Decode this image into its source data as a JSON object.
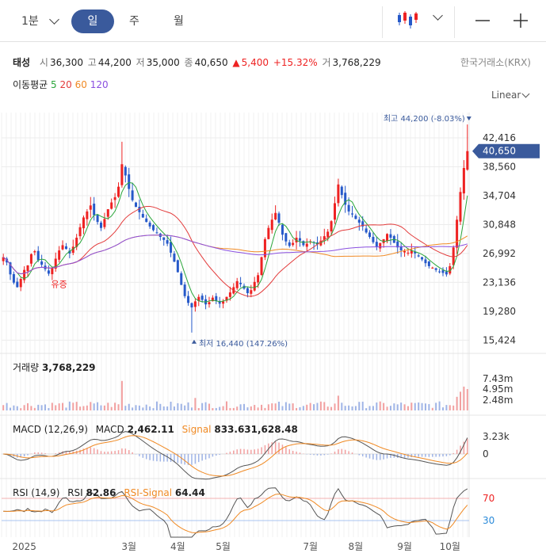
{
  "toolbar": {
    "interval": "1분",
    "periods": [
      "일",
      "주",
      "월"
    ],
    "active_period": "일"
  },
  "stock": {
    "name": "태성",
    "open_label": "시",
    "open": "36,300",
    "high_label": "고",
    "high": "44,200",
    "low_label": "저",
    "low": "35,000",
    "close_label": "종",
    "close": "40,650",
    "change": "5,400",
    "change_pct": "+15.32%",
    "volume_label": "거",
    "volume": "3,768,229",
    "exchange": "한국거래소(KRX)"
  },
  "ma": {
    "label": "이동평균",
    "periods": [
      {
        "value": "5",
        "color": "#2aa63a"
      },
      {
        "value": "20",
        "color": "#e33b3b"
      },
      {
        "value": "60",
        "color": "#f08a24"
      },
      {
        "value": "120",
        "color": "#8a4fe0"
      }
    ]
  },
  "scale_label": "Linear",
  "colors": {
    "up": "#e22",
    "down": "#2659c9",
    "accent": "#3a5a9c"
  },
  "chart_data": {
    "type": "candlestick",
    "price_axis": {
      "ticks": [
        42416,
        38560,
        34704,
        30848,
        26992,
        23136,
        19280,
        15424
      ],
      "ylim": [
        14300,
        45800
      ]
    },
    "current_price": "40,650",
    "max_annotation": "최고 44,200 (-8.03%)",
    "min_annotation": "최저 16,440 (147.26%)",
    "event_marker": "유증",
    "x_ticks": [
      "2025",
      "3월",
      "4월",
      "5월",
      "7월",
      "8월",
      "9월",
      "10월"
    ],
    "close_series": [
      26500,
      25800,
      24200,
      23100,
      22500,
      23600,
      24800,
      25400,
      26900,
      27300,
      26100,
      25500,
      24900,
      24300,
      25100,
      26300,
      27400,
      28100,
      27600,
      27000,
      27900,
      29100,
      30500,
      31800,
      32600,
      33400,
      32100,
      31200,
      30400,
      31600,
      32900,
      33800,
      34500,
      35900,
      38900,
      37400,
      35600,
      34100,
      33200,
      32500,
      31800,
      31200,
      30600,
      30100,
      29700,
      29200,
      28800,
      28300,
      27100,
      25900,
      24500,
      22800,
      21300,
      20400,
      19800,
      20600,
      21200,
      20800,
      20200,
      20500,
      21100,
      20700,
      20300,
      20600,
      21200,
      21800,
      22500,
      23300,
      22900,
      22300,
      21700,
      22100,
      23200,
      24100,
      26500,
      28900,
      30400,
      31500,
      32400,
      31100,
      29500,
      28600,
      28000,
      28400,
      29100,
      28700,
      28100,
      28300,
      28600,
      28400,
      28200,
      28700,
      29300,
      29900,
      31300,
      33700,
      36200,
      34800,
      33500,
      32600,
      32200,
      31600,
      31100,
      30600,
      29800,
      29200,
      28500,
      27900,
      28400,
      28900,
      29600,
      29100,
      28400,
      27800,
      27400,
      27300,
      27100,
      27400,
      27000,
      26600,
      26200,
      25700,
      25300,
      25100,
      24800,
      24600,
      24400,
      24200,
      25300,
      27800,
      31500,
      35200,
      38400,
      40650
    ],
    "ma_series": [
      {
        "name": "5",
        "period": 5,
        "color": "#2aa63a"
      },
      {
        "name": "20",
        "period": 20,
        "color": "#e33b3b"
      },
      {
        "name": "60",
        "period": 60,
        "color": "#f08a24"
      },
      {
        "name": "120",
        "period": 120,
        "color": "#8a4fe0"
      }
    ],
    "volume": {
      "label": "거래량",
      "value": "3,768,229",
      "ticks": [
        "7.43m",
        "4.95m",
        "2.48m"
      ],
      "max": 9500000
    },
    "macd": {
      "label": "MACD (12,26,9)",
      "macd_label": "MACD",
      "macd_value": "2,462.11",
      "signal_label": "Signal",
      "signal_value": "833.631,628.48",
      "ticks": [
        "3.23k",
        "0"
      ]
    },
    "rsi": {
      "label": "RSI (14,9)",
      "rsi_label": "RSI",
      "rsi_value": "82.86",
      "signal_label": "RSI-Signal",
      "signal_value": "64.44",
      "ticks": [
        "70",
        "30"
      ]
    }
  }
}
